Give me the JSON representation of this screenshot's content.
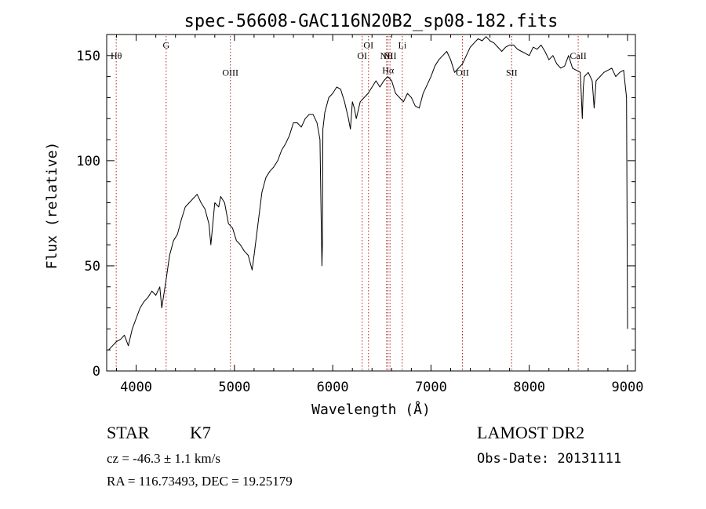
{
  "chart_data": {
    "type": "line",
    "title": "spec-56608-GAC116N20B2_sp08-182.fits",
    "xlabel": "Wavelength (Å)",
    "ylabel": "Flux (relative)",
    "xlim": [
      3700,
      9080
    ],
    "ylim": [
      0,
      160
    ],
    "xticks": [
      4000,
      5000,
      6000,
      7000,
      8000,
      9000
    ],
    "yticks": [
      0,
      50,
      100,
      150
    ],
    "grid": false,
    "series": [
      {
        "x": [
          3720,
          3760,
          3800,
          3840,
          3880,
          3920,
          3960,
          4000,
          4040,
          4080,
          4120,
          4160,
          4200,
          4240,
          4260,
          4300,
          4340,
          4380,
          4420,
          4460,
          4500,
          4540,
          4580,
          4620,
          4660,
          4700,
          4740,
          4760,
          4800,
          4840,
          4860,
          4900,
          4940,
          4980,
          5020,
          5060,
          5100,
          5140,
          5180,
          5200,
          5240,
          5280,
          5320,
          5360,
          5400,
          5440,
          5480,
          5520,
          5560,
          5600,
          5640,
          5680,
          5720,
          5760,
          5800,
          5840,
          5870,
          5880,
          5890,
          5895,
          5900,
          5920,
          5960,
          6000,
          6040,
          6080,
          6120,
          6160,
          6180,
          6200,
          6220,
          6240,
          6280,
          6320,
          6360,
          6400,
          6440,
          6480,
          6520,
          6560,
          6600,
          6640,
          6680,
          6720,
          6760,
          6800,
          6840,
          6880,
          6920,
          6960,
          7000,
          7040,
          7080,
          7120,
          7160,
          7200,
          7240,
          7280,
          7320,
          7360,
          7400,
          7440,
          7480,
          7520,
          7560,
          7600,
          7640,
          7680,
          7720,
          7760,
          7800,
          7840,
          7880,
          7920,
          7960,
          8000,
          8040,
          8080,
          8120,
          8160,
          8200,
          8240,
          8280,
          8320,
          8360,
          8400,
          8440,
          8480,
          8520,
          8540,
          8550,
          8560,
          8600,
          8640,
          8660,
          8680,
          8720,
          8760,
          8800,
          8840,
          8880,
          8920,
          8960,
          8990,
          9000
        ],
        "y": [
          10,
          12,
          14,
          15,
          17,
          12,
          20,
          25,
          30,
          33,
          35,
          38,
          36,
          40,
          30,
          42,
          55,
          62,
          65,
          72,
          78,
          80,
          82,
          84,
          80,
          77,
          70,
          60,
          80,
          78,
          83,
          80,
          70,
          68,
          62,
          60,
          57,
          55,
          48,
          55,
          70,
          85,
          92,
          95,
          97,
          100,
          105,
          108,
          112,
          118,
          118,
          116,
          120,
          122,
          122,
          118,
          110,
          80,
          50,
          60,
          115,
          123,
          130,
          132,
          135,
          134,
          128,
          120,
          115,
          128,
          125,
          120,
          128,
          130,
          132,
          135,
          138,
          135,
          138,
          140,
          138,
          132,
          130,
          128,
          132,
          130,
          126,
          125,
          132,
          136,
          140,
          145,
          148,
          150,
          152,
          148,
          142,
          144,
          146,
          150,
          154,
          156,
          158,
          157,
          159,
          157,
          156,
          154,
          152,
          154,
          155,
          155,
          153,
          152,
          151,
          150,
          154,
          153,
          155,
          152,
          148,
          150,
          146,
          144,
          145,
          150,
          144,
          143,
          142,
          120,
          135,
          140,
          142,
          138,
          125,
          138,
          140,
          142,
          143,
          144,
          140,
          142,
          143,
          130,
          20
        ]
      }
    ],
    "line_markers": [
      {
        "label": "Hθ",
        "x": 3797,
        "label_y": 150
      },
      {
        "label": "G",
        "x": 4305,
        "label_y": 155
      },
      {
        "label": "OIII",
        "x": 4959,
        "label_y": 142
      },
      {
        "label": "OI",
        "x": 6300,
        "label_y": 150
      },
      {
        "label": "OI",
        "x": 6364,
        "label_y": 155
      },
      {
        "label": "NII",
        "x": 6548,
        "label_y": 150
      },
      {
        "label": "Hα",
        "x": 6563,
        "label_y": 143
      },
      {
        "label": "NII",
        "x": 6583,
        "label_y": 150
      },
      {
        "label": "Li",
        "x": 6708,
        "label_y": 155
      },
      {
        "label": "OII",
        "x": 7320,
        "label_y": 142
      },
      {
        "label": "SII",
        "x": 7821,
        "label_y": 142
      },
      {
        "label": "CaII",
        "x": 8498,
        "label_y": 150
      }
    ]
  },
  "info": {
    "object_class": "STAR",
    "subclass": "K7",
    "survey": "LAMOST DR2",
    "cz": "cz = -46.3 ± 1.1 km/s",
    "obs_date": "Obs-Date: 20131111",
    "coords": "RA = 116.73493, DEC =  19.25179"
  }
}
